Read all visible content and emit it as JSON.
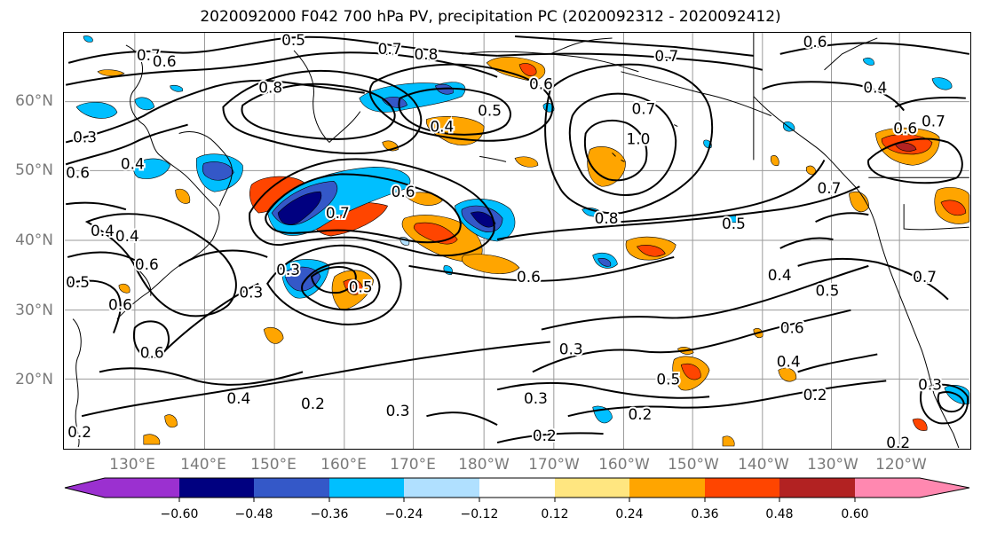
{
  "title": "2020092000 F042 700 hPa PV, precipitation PC (2020092312 - 2020092412)",
  "lat_labels": [
    "60°N",
    "50°N",
    "40°N",
    "30°N",
    "20°N"
  ],
  "lon_labels": [
    "130°E",
    "140°E",
    "150°E",
    "160°E",
    "170°E",
    "180°W",
    "170°W",
    "160°W",
    "150°W",
    "140°W",
    "130°W",
    "120°W"
  ],
  "contour_labels": [
    "0.5",
    "0.7",
    "0.6",
    "0.7",
    "0.8",
    "0.7",
    "0.6",
    "0.4",
    "0.8",
    "0.3",
    "0.4",
    "0.5",
    "0.4",
    "0.6",
    "0.7",
    "1.0",
    "0.7",
    "0.8",
    "0.5",
    "0.7",
    "0.6",
    "0.4",
    "0.3",
    "0.5",
    "0.6",
    "0.6",
    "0.5",
    "0.3",
    "0.6",
    "0.4",
    "0.5",
    "0.6",
    "0.3",
    "0.4",
    "0.2",
    "0.3",
    "0.3",
    "0.2",
    "0.2",
    "0.5",
    "0.2",
    "0.4",
    "0.2",
    "0.3",
    "0.2",
    "0.7",
    "0.6",
    "0.6",
    "0.7",
    "0.6",
    "0.4"
  ],
  "colorbar": {
    "ticks": [
      "−0.60",
      "−0.48",
      "−0.36",
      "−0.24",
      "−0.12",
      "0.12",
      "0.24",
      "0.36",
      "0.48",
      "0.60"
    ],
    "colors": [
      "#9b30d0",
      "#000080",
      "#3458c8",
      "#00bfff",
      "#b0e0ff",
      "#ffffff",
      "#ffe680",
      "#ffa500",
      "#ff4500",
      "#b22222",
      "#ff88b0"
    ]
  }
}
